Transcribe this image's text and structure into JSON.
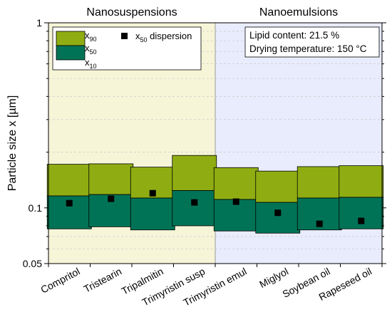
{
  "chart_data": {
    "type": "bar",
    "ylabel": "Particle size x [µm]",
    "yscale": "log",
    "ylim": [
      0.05,
      1
    ],
    "yticks": [
      {
        "value": 0.05,
        "label": "0.05"
      },
      {
        "value": 0.1,
        "label": "0.1"
      },
      {
        "value": 1,
        "label": "1"
      }
    ],
    "categories": [
      "Compritol",
      "Tristearin",
      "Tripalmitin",
      "Trimyristin susp",
      "Trimyristin emul",
      "Miglyol",
      "Soybean oil",
      "Rapeseed oil"
    ],
    "groups": [
      {
        "label": "Nanosuspensions",
        "categories": [
          0,
          3
        ],
        "color": "#f7f5d8"
      },
      {
        "label": "Nanoemulsions",
        "categories": [
          4,
          7
        ],
        "color": "#e9ecfc"
      }
    ],
    "series": [
      {
        "name": "x10",
        "values": [
          0.077,
          0.079,
          0.076,
          0.08,
          0.075,
          0.073,
          0.076,
          0.077
        ]
      },
      {
        "name": "x50",
        "values": [
          0.116,
          0.118,
          0.113,
          0.124,
          0.111,
          0.107,
          0.113,
          0.114
        ]
      },
      {
        "name": "x90",
        "values": [
          0.172,
          0.173,
          0.166,
          0.192,
          0.165,
          0.158,
          0.167,
          0.169
        ]
      },
      {
        "name": "x50 dispersion",
        "values": [
          0.106,
          0.112,
          0.12,
          0.107,
          0.108,
          0.094,
          0.082,
          0.085
        ]
      }
    ],
    "colors": {
      "x90": "#8fad12",
      "x50": "#007356",
      "marker": "#000000"
    },
    "legend": {
      "placement": "top-left",
      "entries": [
        {
          "base": "x",
          "sub": "90"
        },
        {
          "base": "x",
          "sub": "50"
        },
        {
          "base": "x",
          "sub": "10"
        }
      ],
      "marker_entry": {
        "base": "x",
        "sub": "50",
        "rest": " dispersion"
      }
    },
    "annotation": [
      "Lipid content: 21.5 %",
      "Drying temperature: 150 °C"
    ]
  }
}
